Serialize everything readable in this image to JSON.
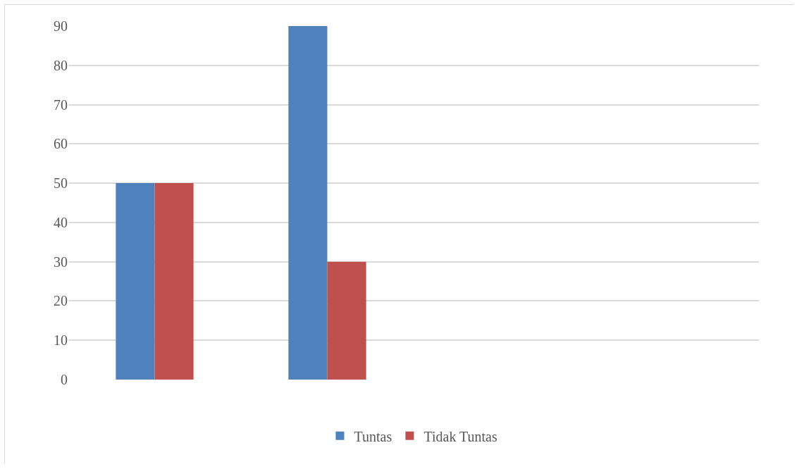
{
  "chart_data": {
    "type": "bar",
    "categories": [
      null,
      null
    ],
    "series": [
      {
        "name": "Tuntas",
        "color": "#4f81bd",
        "values": [
          50,
          90
        ]
      },
      {
        "name": "Tidak Tuntas",
        "color": "#c0504d",
        "values": [
          50,
          30
        ]
      }
    ],
    "ylim": [
      0,
      90
    ],
    "yticks": [
      0,
      10,
      20,
      30,
      40,
      50,
      60,
      70,
      80,
      90
    ],
    "grid": "y",
    "legend": "bottom"
  }
}
